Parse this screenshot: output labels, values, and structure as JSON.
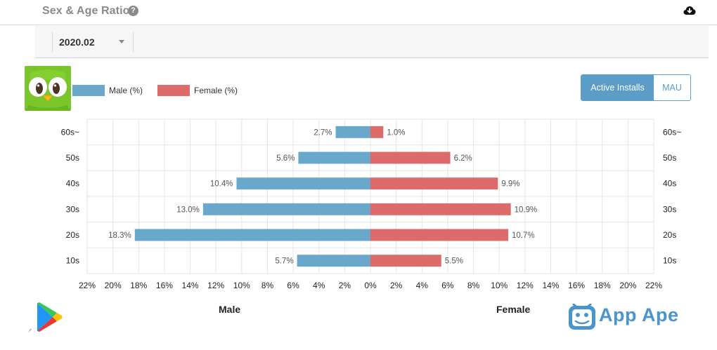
{
  "header": {
    "title": "Sex & Age Ratio",
    "help_icon": "question-circle-icon",
    "help_glyph": "?",
    "download_icon": "cloud-download-icon"
  },
  "filter": {
    "period": "2020.02",
    "caret_icon": "chevron-down-icon"
  },
  "toggle": {
    "active_label": "Active Installs",
    "inactive_label": "MAU"
  },
  "footer": {
    "brand_name": "App Ape",
    "store_icon": "google-play-icon",
    "brand_icon": "app-ape-logo-icon"
  },
  "colors": {
    "male": "#6aa8cb",
    "female": "#dc6b6a",
    "grid": "#e5e5e5",
    "accent": "#5b9dc8"
  },
  "chart_data": {
    "type": "bar",
    "orientation": "horizontal",
    "layout": "population-pyramid",
    "categories": [
      "60s~",
      "50s",
      "40s",
      "30s",
      "20s",
      "10s"
    ],
    "series": [
      {
        "name": "Male (%)",
        "side": "Male",
        "values": [
          2.7,
          5.6,
          10.4,
          13.0,
          18.3,
          5.7
        ],
        "labels": [
          "2.7%",
          "5.6%",
          "10.4%",
          "13.0%",
          "18.3%",
          "5.7%"
        ]
      },
      {
        "name": "Female (%)",
        "side": "Female",
        "values": [
          1.0,
          6.2,
          9.9,
          10.9,
          10.7,
          5.5
        ],
        "labels": [
          "1.0%",
          "6.2%",
          "9.9%",
          "10.9%",
          "10.7%",
          "5.5%"
        ]
      }
    ],
    "x_ticks": [
      "22%",
      "20%",
      "18%",
      "16%",
      "14%",
      "12%",
      "10%",
      "8%",
      "6%",
      "4%",
      "2%",
      "0%",
      "2%",
      "4%",
      "6%",
      "8%",
      "10%",
      "12%",
      "14%",
      "16%",
      "18%",
      "20%",
      "22%"
    ],
    "xlim": [
      -22,
      22
    ],
    "xlabel_left": "Male",
    "xlabel_right": "Female",
    "grid": true,
    "legend": "top-left"
  }
}
